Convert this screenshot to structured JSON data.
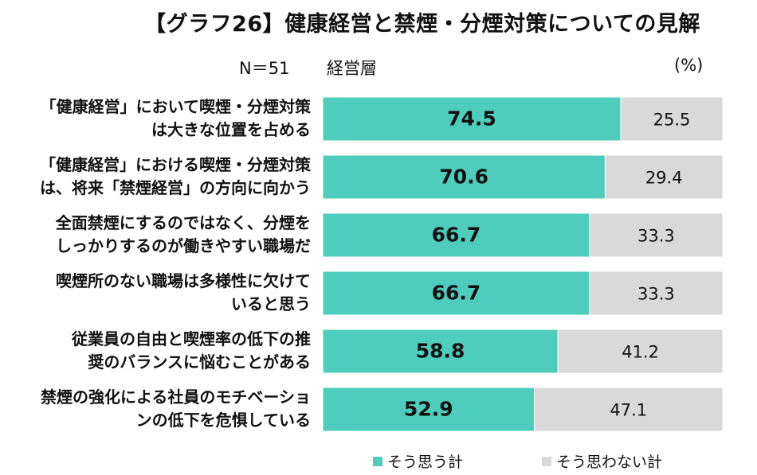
{
  "title": "【グラフ26】健康経営と禁煙・分煙対策についての見解",
  "sample": "N＝51",
  "segment": "経営層",
  "unit": "(%)",
  "colors": {
    "agree": "#4ecdbd",
    "disagree": "#d9d9d9"
  },
  "legend": {
    "agree": "そう思う計",
    "disagree": "そう思わない計"
  },
  "chart_data": {
    "type": "bar",
    "orientation": "horizontal",
    "stacked": true,
    "categories": [
      [
        "「健康経営」において喫煙・分煙対策",
        "は大きな位置を占める"
      ],
      [
        "「健康経営」における喫煙・分煙対策",
        "は、将来「禁煙経営」の方向に向かう"
      ],
      [
        "全面禁煙にするのではなく、分煙を",
        "しっかりするのが働きやすい職場だ"
      ],
      [
        "喫煙所のない職場は多様性に欠けて",
        "いると思う"
      ],
      [
        "従業員の自由と喫煙率の低下の推",
        "奨のバランスに悩むことがある"
      ],
      [
        "禁煙の強化による社員のモチベーショ",
        "ンの低下を危惧している"
      ]
    ],
    "series": [
      {
        "name": "そう思う計",
        "values": [
          "74.5",
          "70.6",
          "66.7",
          "66.7",
          "58.8",
          "52.9"
        ]
      },
      {
        "name": "そう思わない計",
        "values": [
          "25.5",
          "29.4",
          "33.3",
          "33.3",
          "41.2",
          "47.1"
        ]
      }
    ],
    "xlim": [
      0,
      100
    ]
  }
}
